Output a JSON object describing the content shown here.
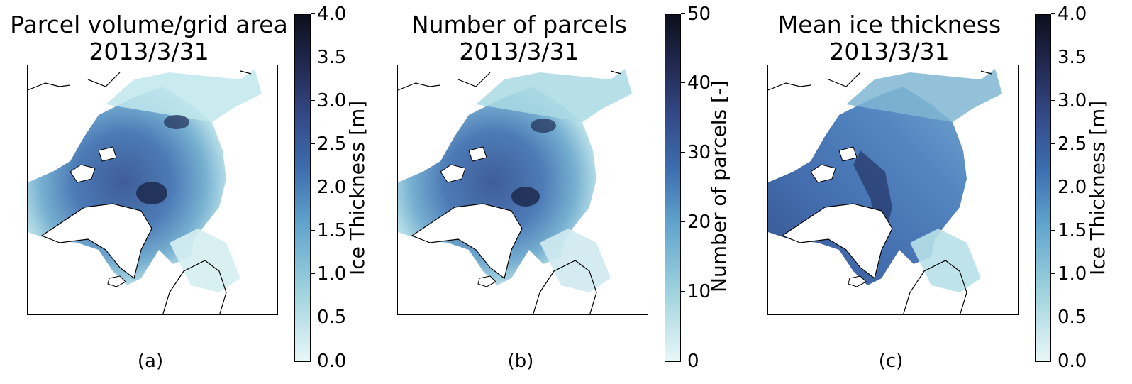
{
  "colors": {
    "low": "#e8f7f8",
    "mid": "#3d6fb0",
    "high": "#0b0f1c",
    "land_outline": "#000000"
  },
  "panels": [
    {
      "title_line1": "Parcel volume/grid area",
      "title_line2": "2013/3/31",
      "caption": "(a)",
      "colorbar_label": "Ice Thickness [m]",
      "colorbar_ticks": [
        "4.0",
        "3.5",
        "3.0",
        "2.5",
        "2.0",
        "1.5",
        "1.0",
        "0.5",
        "0.0"
      ],
      "colorbar_range": [
        0,
        4.0
      ]
    },
    {
      "title_line1": "Number of parcels",
      "title_line2": "2013/3/31",
      "caption": "(b)",
      "colorbar_label": "Number of parcels [-]",
      "colorbar_ticks": [
        "50",
        "40",
        "30",
        "20",
        "10",
        "0"
      ],
      "colorbar_range": [
        0,
        50
      ]
    },
    {
      "title_line1": "Mean ice thickness",
      "title_line2": "2013/3/31",
      "caption": "(c)",
      "colorbar_label": "Ice Thickness [m]",
      "colorbar_ticks": [
        "4.0",
        "3.5",
        "3.0",
        "2.5",
        "2.0",
        "1.5",
        "1.0",
        "0.5",
        "0.0"
      ],
      "colorbar_range": [
        0,
        4.0
      ]
    }
  ]
}
